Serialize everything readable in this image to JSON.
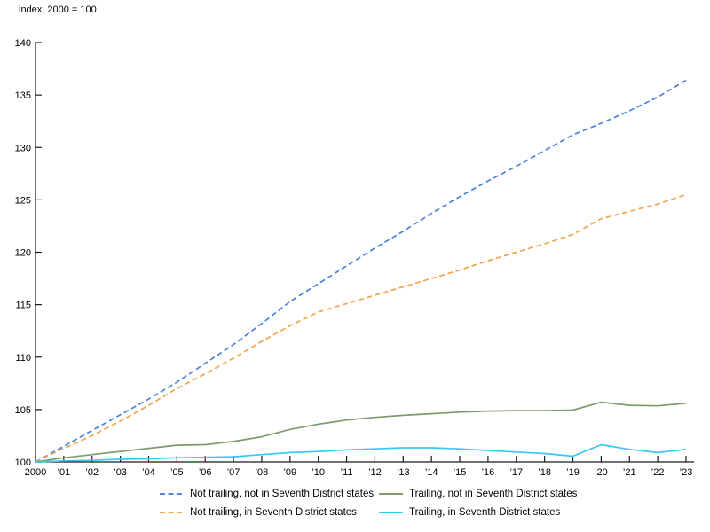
{
  "header": {
    "index_label": "index, 2000 = 100"
  },
  "chart_data": {
    "type": "line",
    "title": "",
    "xlabel": "",
    "ylabel": "index, 2000 = 100",
    "ylim": [
      100,
      140
    ],
    "y_ticks": [
      100,
      105,
      110,
      115,
      120,
      125,
      130,
      135,
      140
    ],
    "grid": false,
    "legend_position": "bottom",
    "axis_color": "#1a1a1a",
    "x_tick_labels": [
      "2000",
      "’01",
      "’02",
      "’03",
      "’04",
      "’05",
      "’06",
      "’07",
      "’08",
      "’09",
      "’10",
      "’11",
      "’12",
      "’13",
      "’14",
      "’15",
      "’16",
      "’17",
      "’18",
      "’19",
      "’20",
      "’21",
      "’22",
      "’23"
    ],
    "series": [
      {
        "name": "Not trailing, not in Seventh District states",
        "color": "#4d84d9",
        "style": "dashed",
        "values": [
          100,
          101.5,
          103.0,
          104.5,
          106.0,
          107.6,
          109.4,
          111.2,
          113.2,
          115.3,
          117.0,
          118.7,
          120.4,
          122.0,
          123.7,
          125.3,
          126.8,
          128.2,
          129.7,
          131.2,
          132.3,
          133.5,
          134.8,
          136.4
        ]
      },
      {
        "name": "Not trailing, in Seventh District states",
        "color": "#f0a550",
        "style": "dashed",
        "values": [
          100,
          101.3,
          102.5,
          103.9,
          105.4,
          107.0,
          108.4,
          109.9,
          111.5,
          113.0,
          114.3,
          115.1,
          115.9,
          116.7,
          117.5,
          118.3,
          119.2,
          120.0,
          120.8,
          121.7,
          123.2,
          123.9,
          124.6,
          125.5
        ]
      },
      {
        "name": "Trailing, not in Seventh District states",
        "color": "#7d9b6e",
        "style": "solid",
        "values": [
          100,
          100.4,
          100.7,
          101.0,
          101.3,
          101.6,
          101.65,
          101.95,
          102.4,
          103.1,
          103.6,
          104.0,
          104.25,
          104.45,
          104.6,
          104.75,
          104.85,
          104.9,
          104.9,
          104.95,
          105.7,
          105.4,
          105.35,
          105.6
        ]
      },
      {
        "name": "Trailing, in Seventh District states",
        "color": "#3ac7f2",
        "style": "solid",
        "values": [
          100,
          100.1,
          100.15,
          100.25,
          100.3,
          100.4,
          100.45,
          100.5,
          100.7,
          100.9,
          101.0,
          101.15,
          101.25,
          101.35,
          101.35,
          101.25,
          101.1,
          100.95,
          100.8,
          100.55,
          101.65,
          101.2,
          100.9,
          101.2
        ]
      }
    ]
  }
}
